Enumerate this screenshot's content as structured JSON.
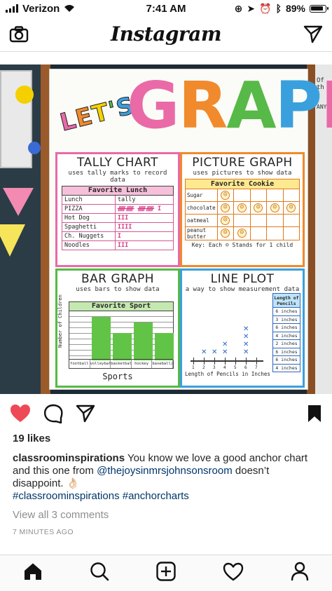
{
  "status_bar": {
    "carrier": "Verizon",
    "time": "7:41 AM",
    "battery": "89%"
  },
  "header": {
    "title": "Instagram",
    "left_icon": "camera-icon",
    "right_icon": "direct-send-icon"
  },
  "post_image": {
    "side_sign_top": "Of th",
    "side_sign_bottom": "ANYON",
    "title_lets": "LET'S",
    "title_graph": "GRAPH",
    "quadrants": {
      "tally": {
        "title": "TALLY CHART",
        "subtitle": "uses tally marks to record data",
        "table_title": "Favorite Lunch",
        "columns": [
          "Lunch",
          "tally"
        ],
        "rows": [
          {
            "item": "PIZZA",
            "tally": "ᚏᚏ ᚏᚏ I"
          },
          {
            "item": "Hot Dog",
            "tally": "III"
          },
          {
            "item": "Spaghetti",
            "tally": "IIII"
          },
          {
            "item": "Ch. Nuggets",
            "tally": "I"
          },
          {
            "item": "Noodles",
            "tally": "III"
          }
        ]
      },
      "picture": {
        "title": "PICTURE GRAPH",
        "subtitle": "uses pictures to show data",
        "table_title": "Favorite Cookie",
        "rows": [
          {
            "item": "Sugar",
            "count": 1
          },
          {
            "item": "chocolate",
            "count": 5
          },
          {
            "item": "oatmeal",
            "count": 1
          },
          {
            "item": "peanut butter",
            "count": 2
          }
        ],
        "key_text": "Key: Each ☺ Stands for 1 child"
      },
      "bar": {
        "title": "BAR GRAPH",
        "subtitle": "uses bars to show data",
        "table_title": "Favorite Sport",
        "ylabel": "Number of Children",
        "xlabel": "Sports",
        "categories": [
          "football",
          "volleyball",
          "basketball",
          "hockey",
          "baseball/softball"
        ],
        "values": [
          0,
          8,
          5,
          7,
          5
        ]
      },
      "line_plot": {
        "title": "LINE PLOT",
        "subtitle": "a way to show measurement data",
        "xlabel": "Length of Pencils in Inches",
        "axis_numbers": [
          "1",
          "2",
          "3",
          "4",
          "5",
          "6",
          "7"
        ],
        "table_header": "Length of Pencils",
        "table_values": [
          "6 inches",
          "3 inches",
          "6 inches",
          "4 inches",
          "2 inches",
          "6 inches",
          "6 inches",
          "4 inches"
        ],
        "x_counts": [
          0,
          1,
          1,
          2,
          0,
          4,
          0
        ]
      }
    }
  },
  "actions": {
    "like_icon": "heart-filled-icon",
    "comment_icon": "comment-icon",
    "share_icon": "share-icon",
    "save_icon": "bookmark-icon"
  },
  "post": {
    "likes": "19 likes",
    "username": "classroominspirations",
    "caption_text": " You know we love a good anchor chart and this one from ",
    "mention": "@thejoysinmrsjohnsonsroom",
    "caption_text2": " doesn’t disappoint. 👌🏻",
    "hashtags": "#classroominspirations #anchorcharts",
    "view_comments": "View all 3 comments",
    "time_ago": "7 MINUTES AGO"
  },
  "bottom_nav": {
    "items": [
      "home-icon",
      "search-icon",
      "new-post-icon",
      "activity-heart-icon",
      "profile-icon"
    ]
  },
  "colors": {
    "like": "#ed4956",
    "text": "#262626",
    "muted": "#8e8e8e",
    "link": "#003569"
  }
}
